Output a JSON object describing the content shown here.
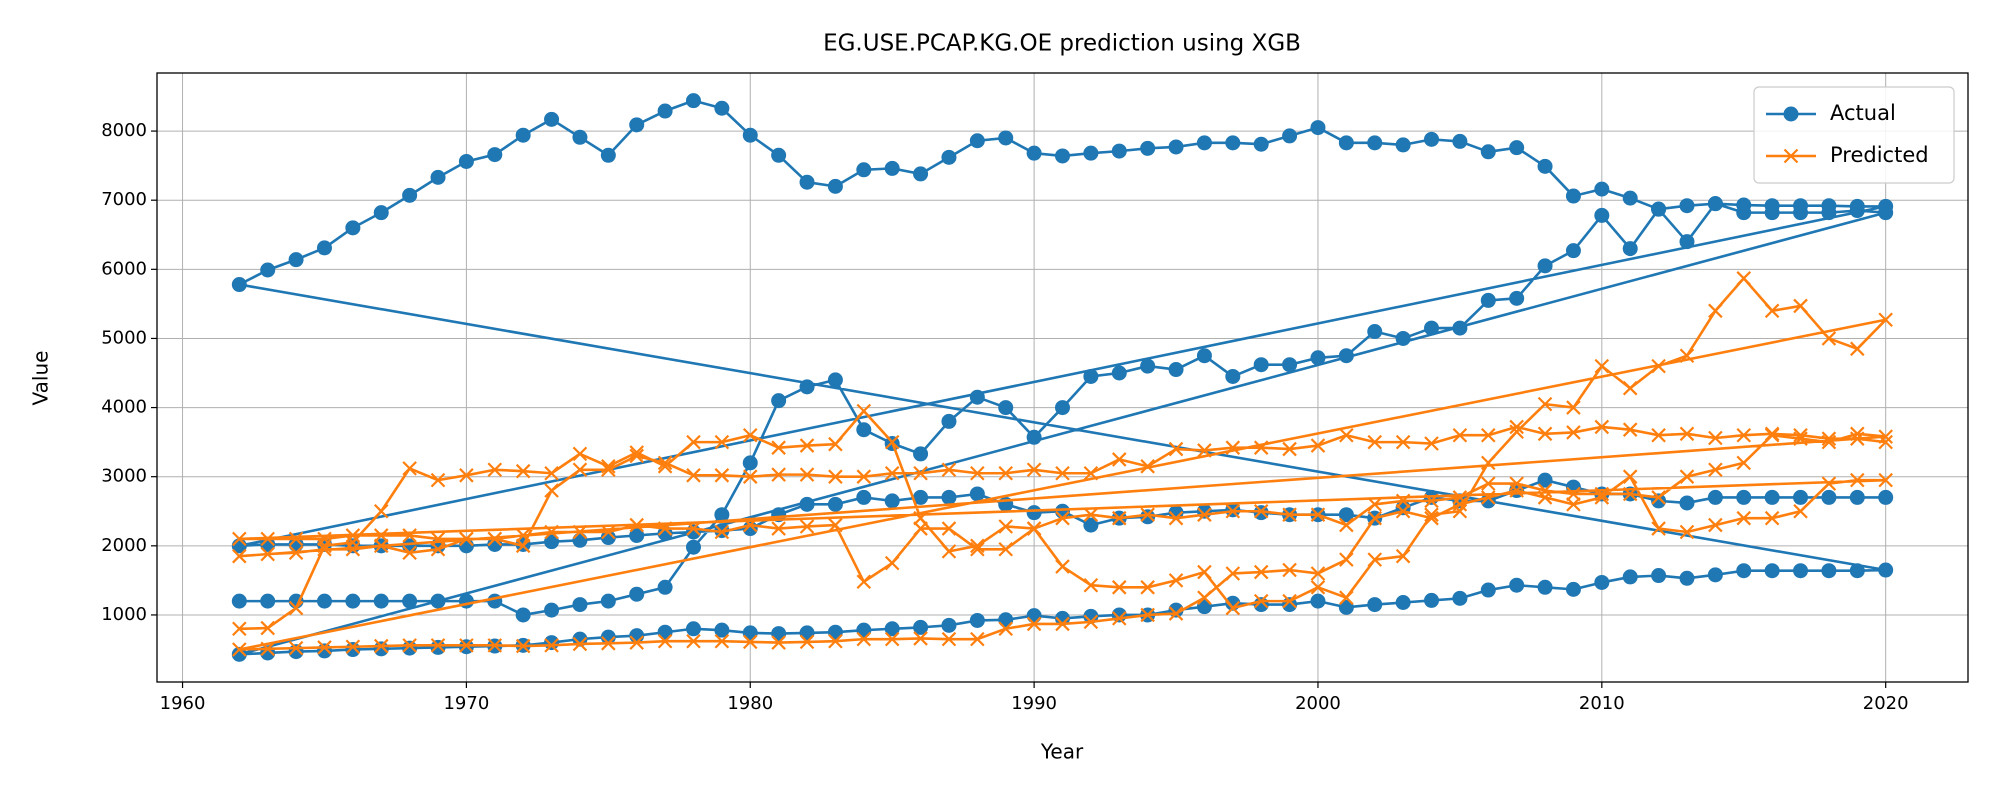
{
  "chart_data": {
    "type": "line",
    "title": "EG.USE.PCAP.KG.OE prediction using XGB",
    "xlabel": "Year",
    "ylabel": "Value",
    "x": [
      1962,
      1963,
      1964,
      1965,
      1966,
      1967,
      1968,
      1969,
      1970,
      1971,
      1972,
      1973,
      1974,
      1975,
      1976,
      1977,
      1978,
      1979,
      1980,
      1981,
      1982,
      1983,
      1984,
      1985,
      1986,
      1987,
      1988,
      1989,
      1990,
      1991,
      1992,
      1993,
      1994,
      1995,
      1996,
      1997,
      1998,
      1999,
      2000,
      2001,
      2002,
      2003,
      2004,
      2005,
      2006,
      2007,
      2008,
      2009,
      2010,
      2011,
      2012,
      2013,
      2014,
      2015,
      2016,
      2017,
      2018,
      2019,
      2020,
      1962,
      1963,
      1964,
      1965,
      1966,
      1967,
      1968,
      1969,
      1970,
      1971,
      1972,
      1973,
      1974,
      1975,
      1976,
      1977,
      1978,
      1979,
      1980,
      1981,
      1982,
      1983,
      1984,
      1985,
      1986,
      1987,
      1988,
      1989,
      1990,
      1991,
      1992,
      1993,
      1994,
      1995,
      1996,
      1997,
      1998,
      1999,
      2000,
      2001,
      2002,
      2003,
      2004,
      2005,
      2006,
      2007,
      2008,
      2009,
      2010,
      2011,
      2012,
      2013,
      2014,
      2015,
      2016,
      2017,
      2018,
      2019,
      2020,
      1962,
      1963,
      1964,
      1965,
      1966,
      1967,
      1968,
      1969,
      1970,
      1971,
      1972,
      1973,
      1974,
      1975,
      1976,
      1977,
      1978,
      1979,
      1980,
      1981,
      1982,
      1983,
      1984,
      1985,
      1986,
      1987,
      1988,
      1989,
      1990,
      1991,
      1992,
      1993,
      1994,
      1995,
      1996,
      1997,
      1998,
      1999,
      2000,
      2001,
      2002,
      2003,
      2004,
      2005,
      2006,
      2007,
      2008,
      2009,
      2010,
      2011,
      2012,
      2013,
      2014,
      2015,
      2016,
      2017,
      2018,
      2019,
      2020,
      1962,
      1963,
      1964,
      1965,
      1966,
      1967,
      1968,
      1969,
      1970,
      1971,
      1972,
      1973,
      1974,
      1975,
      1976,
      1977,
      1978,
      1979,
      1980,
      1981,
      1982,
      1983,
      1984,
      1985,
      1986,
      1987,
      1988,
      1989,
      1990,
      1991,
      1992,
      1993,
      1994,
      1995,
      1996,
      1997,
      1998,
      1999,
      2000,
      2001,
      2002,
      2003,
      2004,
      2005,
      2006,
      2007,
      2008,
      2009,
      2010,
      2011,
      2012,
      2013,
      2014,
      2015,
      2016,
      2017,
      2018,
      2019,
      2020
    ],
    "series": [
      {
        "name": "Actual",
        "color": "#1f77b4",
        "marker": "o",
        "values": [
          1200,
          1200,
          1200,
          1200,
          1200,
          1200,
          1200,
          1200,
          1200,
          1200,
          1000,
          1070,
          1150,
          1200,
          1300,
          1400,
          1980,
          2450,
          3200,
          4100,
          4300,
          4400,
          3680,
          3480,
          3330,
          3800,
          4150,
          4000,
          3570,
          4000,
          4450,
          4500,
          4600,
          4550,
          4750,
          4450,
          4620,
          4620,
          4720,
          4750,
          5100,
          5000,
          5150,
          5150,
          5550,
          5580,
          6050,
          6270,
          6780,
          6300,
          6870,
          6400,
          6950,
          6820,
          6820,
          6820,
          6820,
          6850,
          6820,
          430,
          450,
          470,
          480,
          500,
          510,
          520,
          530,
          540,
          550,
          560,
          600,
          650,
          680,
          700,
          750,
          800,
          780,
          740,
          730,
          740,
          750,
          780,
          800,
          820,
          850,
          920,
          930,
          990,
          950,
          980,
          1000,
          1000,
          1070,
          1120,
          1170,
          1150,
          1150,
          1200,
          1110,
          1150,
          1180,
          1210,
          1240,
          1360,
          1430,
          1400,
          1370,
          1470,
          1550,
          1570,
          1530,
          1580,
          1640,
          1640,
          1640,
          1640,
          1640,
          1650,
          5780,
          5990,
          6140,
          6310,
          6600,
          6820,
          7070,
          7330,
          7560,
          7660,
          7940,
          8170,
          7910,
          7650,
          8090,
          8290,
          8440,
          8330,
          7940,
          7650,
          7260,
          7200,
          7440,
          7460,
          7380,
          7620,
          7860,
          7900,
          7680,
          7640,
          7680,
          7710,
          7750,
          7770,
          7830,
          7830,
          7810,
          7930,
          8050,
          7830,
          7830,
          7800,
          7880,
          7850,
          7700,
          7760,
          7490,
          7060,
          7160,
          7030,
          6870,
          6920,
          6950,
          6930,
          6920,
          6920,
          6920,
          6910,
          6910,
          2000,
          2020,
          2020,
          2020,
          2000,
          2000,
          2000,
          2000,
          2000,
          2020,
          2020,
          2060,
          2080,
          2120,
          2150,
          2180,
          2200,
          2220,
          2250,
          2450,
          2600,
          2600,
          2700,
          2650,
          2700,
          2700,
          2750,
          2600,
          2480,
          2500,
          2300,
          2400,
          2420,
          2480,
          2500,
          2520,
          2480,
          2450,
          2450,
          2450,
          2400,
          2550,
          2700,
          2650,
          2650,
          2800,
          2950,
          2850,
          2750,
          2750,
          2650,
          2620,
          2700,
          2700,
          2700,
          2700,
          2700,
          2700,
          2700
        ]
      },
      {
        "name": "Predicted",
        "color": "#ff7f0e",
        "marker": "x",
        "values": [
          800,
          810,
          1100,
          2000,
          2050,
          2500,
          3120,
          2950,
          3020,
          3100,
          3080,
          3050,
          3330,
          3150,
          3350,
          3150,
          3500,
          3500,
          3600,
          3420,
          3450,
          3470,
          3950,
          3500,
          2400,
          1920,
          2000,
          2280,
          2250,
          1700,
          1430,
          1400,
          1400,
          1500,
          1620,
          1100,
          1200,
          1200,
          1400,
          1250,
          1800,
          1850,
          2450,
          2500,
          3200,
          3650,
          4050,
          4000,
          4600,
          4280,
          4600,
          4750,
          5400,
          5870,
          5400,
          5470,
          5000,
          4850,
          5270,
          500,
          510,
          520,
          530,
          540,
          550,
          560,
          560,
          560,
          560,
          550,
          560,
          580,
          590,
          600,
          620,
          620,
          620,
          610,
          600,
          610,
          620,
          650,
          650,
          660,
          650,
          650,
          800,
          870,
          870,
          900,
          950,
          1000,
          1020,
          1250,
          1600,
          1620,
          1650,
          1600,
          1800,
          2400,
          2500,
          2400,
          2600,
          2700,
          2800,
          2700,
          2600,
          2700,
          3000,
          2250,
          2200,
          2300,
          2400,
          2400,
          2500,
          2900,
          2950,
          2950,
          2100,
          2100,
          2100,
          2100,
          2150,
          2150,
          2150,
          2100,
          2100,
          2100,
          2150,
          2200,
          2200,
          2200,
          2300,
          2250,
          2250,
          2200,
          2300,
          2250,
          2280,
          2300,
          1480,
          1750,
          2250,
          2250,
          1950,
          1950,
          2250,
          2400,
          2450,
          2400,
          2450,
          2400,
          2450,
          2500,
          2500,
          2450,
          2450,
          2300,
          2600,
          2650,
          2650,
          2700,
          2900,
          2900,
          2800,
          2750,
          2750,
          2750,
          2700,
          3000,
          3100,
          3200,
          3600,
          3550,
          3500,
          3620,
          3580,
          1850,
          1880,
          1900,
          1950,
          1950,
          2000,
          1900,
          1950,
          2100,
          2100,
          2000,
          2800,
          3100,
          3100,
          3300,
          3200,
          3020,
          3020,
          3000,
          3030,
          3030,
          3000,
          3000,
          3050,
          3050,
          3100,
          3050,
          3050,
          3100,
          3050,
          3050,
          3250,
          3150,
          3400,
          3380,
          3420,
          3420,
          3400,
          3450,
          3600,
          3500,
          3500,
          3480,
          3600,
          3600,
          3720,
          3620,
          3640,
          3720,
          3680,
          3600,
          3620,
          3560,
          3600,
          3620,
          3600,
          3550,
          3550,
          3500
        ]
      }
    ],
    "xlim": [
      1959.1,
      2022.9
    ],
    "ylim": [
      30,
      8840
    ],
    "xticks": [
      1960,
      1970,
      1980,
      1990,
      2000,
      2010,
      2020
    ],
    "yticks": [
      1000,
      2000,
      3000,
      4000,
      5000,
      6000,
      7000,
      8000
    ],
    "grid": true,
    "legend": "upper right"
  }
}
